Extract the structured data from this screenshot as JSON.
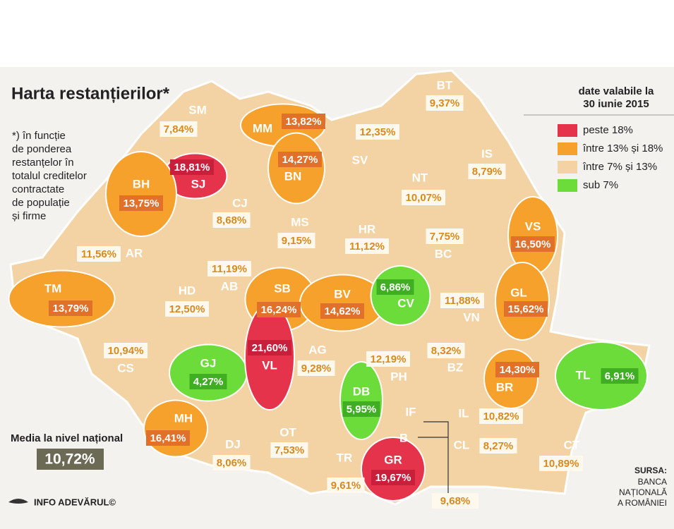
{
  "header": {
    "title": "Harta restanțierilor*",
    "note": [
      "*) în funcție",
      "de ponderea",
      "restanțelor în",
      "totalul creditelor",
      "contractate",
      "de populație",
      "și firme"
    ]
  },
  "legend": {
    "title": [
      "date valabile la",
      "30  iunie 2015"
    ],
    "items": [
      {
        "label": "peste 18%",
        "color": "#e5334b"
      },
      {
        "label": "între 13% și 18%",
        "color": "#f6a12c"
      },
      {
        "label": "între 7% și 13%",
        "color": "#f3d3a4"
      },
      {
        "label": "sub 7%",
        "color": "#6cdc3a"
      }
    ]
  },
  "counties": [
    {
      "code": "SM",
      "value": "7,84%",
      "color": "#f3d3a4"
    },
    {
      "code": "MM",
      "value": "13,82%",
      "color": "#f6a12c"
    },
    {
      "code": "BT",
      "value": "9,37%",
      "color": "#f3d3a4"
    },
    {
      "code": "SJ",
      "value": "18,81%",
      "color": "#e5334b"
    },
    {
      "code": "BH",
      "value": "13,75%",
      "color": "#f6a12c"
    },
    {
      "code": "BN",
      "value": "14,27%",
      "color": "#f6a12c"
    },
    {
      "code": "SV",
      "value": "12,35%",
      "color": "#f3d3a4"
    },
    {
      "code": "IS",
      "value": "8,79%",
      "color": "#f3d3a4"
    },
    {
      "code": "NT",
      "value": "10,07%",
      "color": "#f3d3a4"
    },
    {
      "code": "CJ",
      "value": "8,68%",
      "color": "#f3d3a4"
    },
    {
      "code": "MS",
      "value": "9,15%",
      "color": "#f3d3a4"
    },
    {
      "code": "HR",
      "value": "11,12%",
      "color": "#f3d3a4"
    },
    {
      "code": "BC",
      "value": "7,75%",
      "color": "#f3d3a4"
    },
    {
      "code": "VS",
      "value": "16,50%",
      "color": "#f6a12c"
    },
    {
      "code": "AR",
      "value": "11,56%",
      "color": "#f3d3a4"
    },
    {
      "code": "AB",
      "value": "11,19%",
      "color": "#f3d3a4"
    },
    {
      "code": "TM",
      "value": "13,79%",
      "color": "#f6a12c"
    },
    {
      "code": "HD",
      "value": "12,50%",
      "color": "#f3d3a4"
    },
    {
      "code": "SB",
      "value": "16,24%",
      "color": "#f6a12c"
    },
    {
      "code": "BV",
      "value": "14,62%",
      "color": "#f6a12c"
    },
    {
      "code": "CV",
      "value": "6,86%",
      "color": "#6cdc3a"
    },
    {
      "code": "VN",
      "value": "11,88%",
      "color": "#f3d3a4"
    },
    {
      "code": "GL",
      "value": "15,62%",
      "color": "#f6a12c"
    },
    {
      "code": "CS",
      "value": "10,94%",
      "color": "#f3d3a4"
    },
    {
      "code": "GJ",
      "value": "4,27%",
      "color": "#6cdc3a"
    },
    {
      "code": "VL",
      "value": "21,60%",
      "color": "#e5334b"
    },
    {
      "code": "AG",
      "value": "9,28%",
      "color": "#f3d3a4"
    },
    {
      "code": "PH",
      "value": "12,19%",
      "color": "#f3d3a4"
    },
    {
      "code": "BZ",
      "value": "8,32%",
      "color": "#f3d3a4"
    },
    {
      "code": "BR",
      "value": "14,30%",
      "color": "#f6a12c"
    },
    {
      "code": "TL",
      "value": "6,91%",
      "color": "#6cdc3a"
    },
    {
      "code": "DB",
      "value": "5,95%",
      "color": "#6cdc3a"
    },
    {
      "code": "IF",
      "color": "#f3d3a4"
    },
    {
      "code": "B",
      "color": "#f3d3a4"
    },
    {
      "code": "MH",
      "value": "16,41%",
      "color": "#f6a12c"
    },
    {
      "code": "DJ",
      "value": "8,06%",
      "color": "#f3d3a4"
    },
    {
      "code": "OT",
      "value": "7,53%",
      "color": "#f3d3a4"
    },
    {
      "code": "TR",
      "value": "9,61%",
      "color": "#f3d3a4"
    },
    {
      "code": "GR",
      "value": "19,67%",
      "color": "#e5334b"
    },
    {
      "code": "IL",
      "value": "10,82%",
      "color": "#f3d3a4"
    },
    {
      "code": "CL",
      "value": "8,27%",
      "color": "#f3d3a4"
    },
    {
      "code": "CT",
      "value": "10,89%",
      "color": "#f3d3a4"
    }
  ],
  "callout": "9,68%",
  "national": {
    "label": "Media la nivel național",
    "value": "10,72%"
  },
  "footer": {
    "brand": "INFO ADEVĂRUL©",
    "source_title": "SURSA:",
    "source": [
      "BANCA",
      "NAȚIONALĂ",
      "A ROMÂNIEI"
    ]
  }
}
